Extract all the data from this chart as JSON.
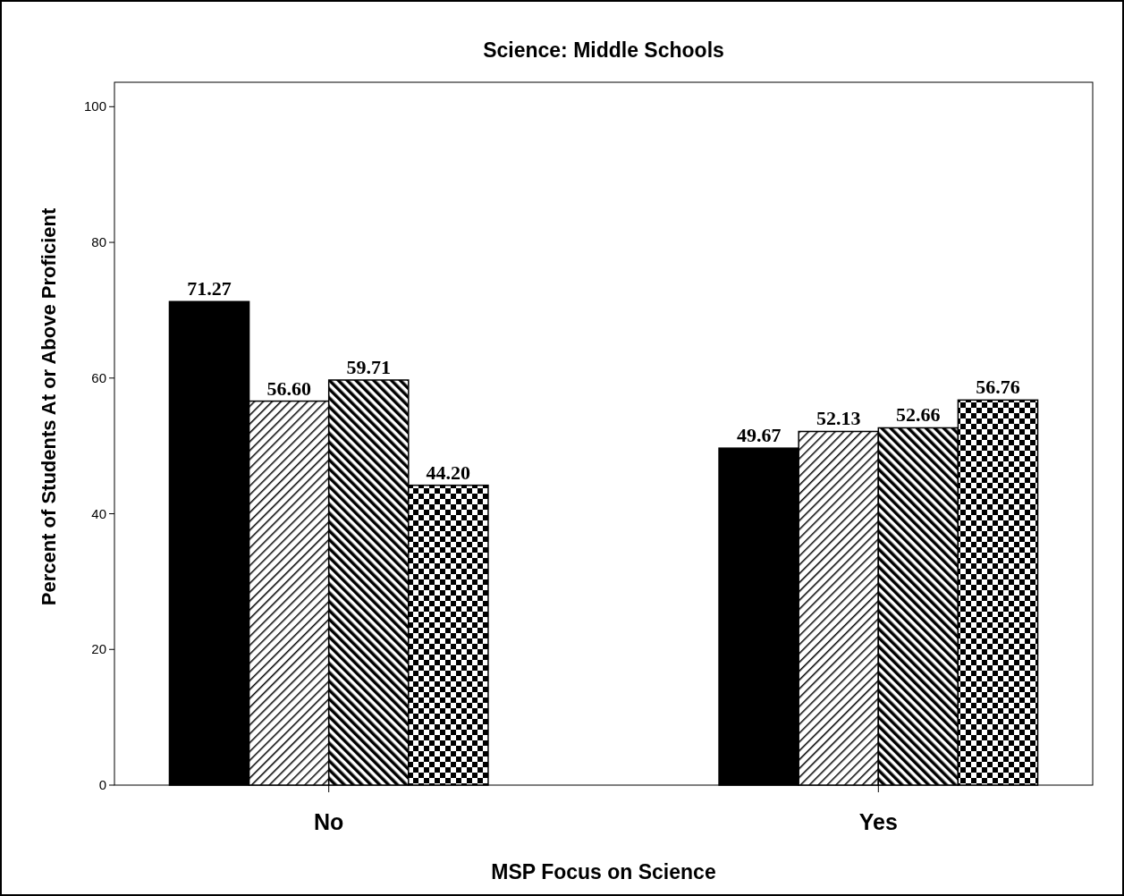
{
  "chart_data": {
    "type": "bar",
    "title": "Science: Middle Schools",
    "xlabel": "MSP Focus on Science",
    "ylabel": "Percent of Students At or Above Proficient",
    "categories": [
      "No",
      "Yes"
    ],
    "series": [
      {
        "color": "#000000",
        "values": [
          71.27,
          49.67
        ],
        "value_labels": [
          "71.27",
          "49.67"
        ]
      },
      {
        "color": "#000000",
        "values": [
          56.6,
          52.13
        ],
        "value_labels": [
          "56.60",
          "52.13"
        ]
      },
      {
        "color": "#000000",
        "values": [
          59.71,
          52.66
        ],
        "value_labels": [
          "59.71",
          "52.66"
        ]
      },
      {
        "color": "#000000",
        "values": [
          44.2,
          56.76
        ],
        "value_labels": [
          "44.20",
          "56.76"
        ]
      }
    ],
    "ylim": [
      0,
      103.6
    ],
    "yticks": [
      0,
      20,
      40,
      60,
      80,
      100
    ]
  }
}
